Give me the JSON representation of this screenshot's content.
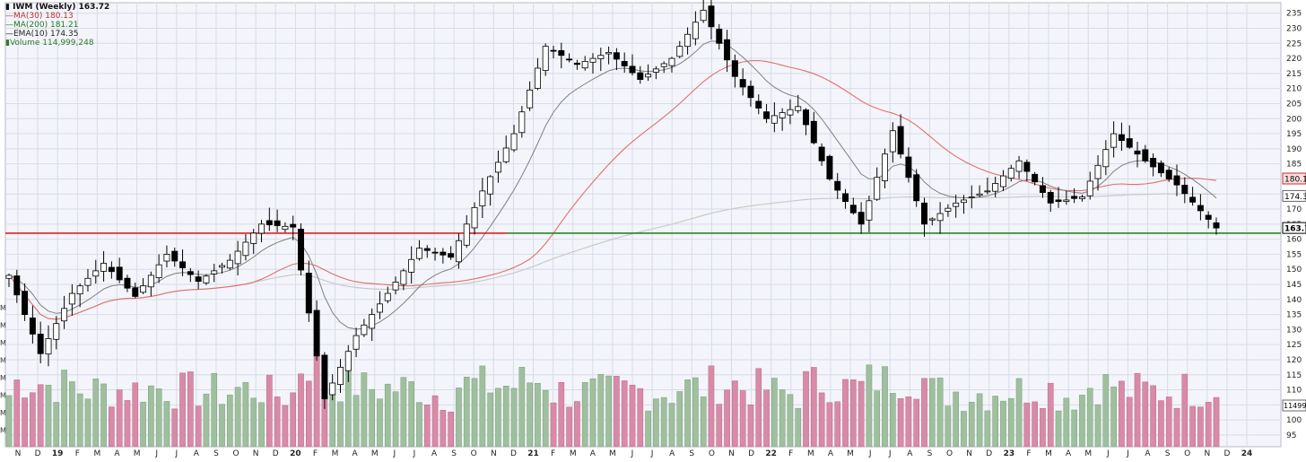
{
  "legend": {
    "title": "IWM (Weekly) 163.72",
    "ma30": "MA(30) 180.13",
    "ma200": "MA(200) 181.21",
    "ema10": "EMA(10) 174.35",
    "volume": "Volume 114,999,248"
  },
  "colors": {
    "background": "#f3f5fa",
    "grid": "#d8dce8",
    "up": "#ffffff",
    "down": "#000000",
    "ma30": "#e07070",
    "ma200": "#c9c9c9",
    "ema10": "#808080",
    "vol_up": "#9fbf9f",
    "vol_down": "#d88aa6",
    "support_red": "#e02020",
    "support_green": "#1f8a1f",
    "last_price_label_bg": "#ffffff"
  },
  "axis_labels": {
    "last_price": "163.72",
    "ma30_price": "180.13",
    "ema10_price": "174.35",
    "last_volume": "114999248"
  },
  "chart_data": {
    "type": "candlestick",
    "title": "IWM (Weekly) 163.72",
    "y_price_range": [
      92,
      237
    ],
    "y_price_ticks": [
      95,
      100,
      105,
      110,
      115,
      120,
      125,
      130,
      135,
      140,
      145,
      150,
      155,
      160,
      165,
      170,
      175,
      180,
      185,
      190,
      195,
      200,
      205,
      210,
      215,
      220,
      225,
      230,
      235
    ],
    "y_volume_ticks": [
      "M",
      "M",
      "M",
      "M",
      "M",
      "M",
      "M",
      "M"
    ],
    "x_labels": [
      "N",
      "D",
      "19",
      "F",
      "M",
      "A",
      "M",
      "J",
      "J",
      "A",
      "S",
      "O",
      "N",
      "D",
      "20",
      "F",
      "M",
      "A",
      "M",
      "J",
      "J",
      "A",
      "S",
      "O",
      "N",
      "D",
      "21",
      "F",
      "M",
      "A",
      "M",
      "J",
      "J",
      "A",
      "S",
      "O",
      "N",
      "D",
      "22",
      "F",
      "M",
      "A",
      "M",
      "J",
      "J",
      "A",
      "S",
      "O",
      "N",
      "D",
      "23",
      "F",
      "M",
      "A",
      "M",
      "J",
      "J",
      "A",
      "S",
      "O",
      "N",
      "D",
      "24"
    ],
    "horizontal_lines": [
      {
        "color": "red",
        "price": 162
      },
      {
        "color": "green",
        "price": 162
      }
    ],
    "keypoints": [
      {
        "date": "2018-11",
        "close": 148
      },
      {
        "date": "2018-12",
        "close": 122
      },
      {
        "date": "2019-01",
        "close": 142
      },
      {
        "date": "2019-03",
        "close": 152
      },
      {
        "date": "2019-05",
        "close": 141
      },
      {
        "date": "2019-07",
        "close": 155
      },
      {
        "date": "2019-08",
        "close": 146
      },
      {
        "date": "2019-10",
        "close": 153
      },
      {
        "date": "2019-12",
        "close": 165
      },
      {
        "date": "2020-01",
        "close": 164
      },
      {
        "date": "2020-03",
        "close": 107
      },
      {
        "date": "2020-04",
        "close": 128
      },
      {
        "date": "2020-06",
        "close": 142
      },
      {
        "date": "2020-08",
        "close": 157
      },
      {
        "date": "2020-10",
        "close": 154
      },
      {
        "date": "2020-11",
        "close": 176
      },
      {
        "date": "2020-12",
        "close": 195
      },
      {
        "date": "2021-02",
        "close": 224
      },
      {
        "date": "2021-03",
        "close": 218
      },
      {
        "date": "2021-05",
        "close": 222
      },
      {
        "date": "2021-07",
        "close": 213
      },
      {
        "date": "2021-09",
        "close": 220
      },
      {
        "date": "2021-11",
        "close": 236
      },
      {
        "date": "2021-12",
        "close": 214
      },
      {
        "date": "2022-01",
        "close": 200
      },
      {
        "date": "2022-03",
        "close": 204
      },
      {
        "date": "2022-05",
        "close": 180
      },
      {
        "date": "2022-06",
        "close": 165
      },
      {
        "date": "2022-08",
        "close": 196
      },
      {
        "date": "2022-09",
        "close": 165
      },
      {
        "date": "2022-10",
        "close": 172
      },
      {
        "date": "2022-12",
        "close": 176
      },
      {
        "date": "2023-01",
        "close": 186
      },
      {
        "date": "2023-03",
        "close": 172
      },
      {
        "date": "2023-05",
        "close": 174
      },
      {
        "date": "2023-07",
        "close": 195
      },
      {
        "date": "2023-08",
        "close": 186
      },
      {
        "date": "2023-09",
        "close": 178
      },
      {
        "date": "2023-10",
        "close": 163.72
      }
    ]
  }
}
